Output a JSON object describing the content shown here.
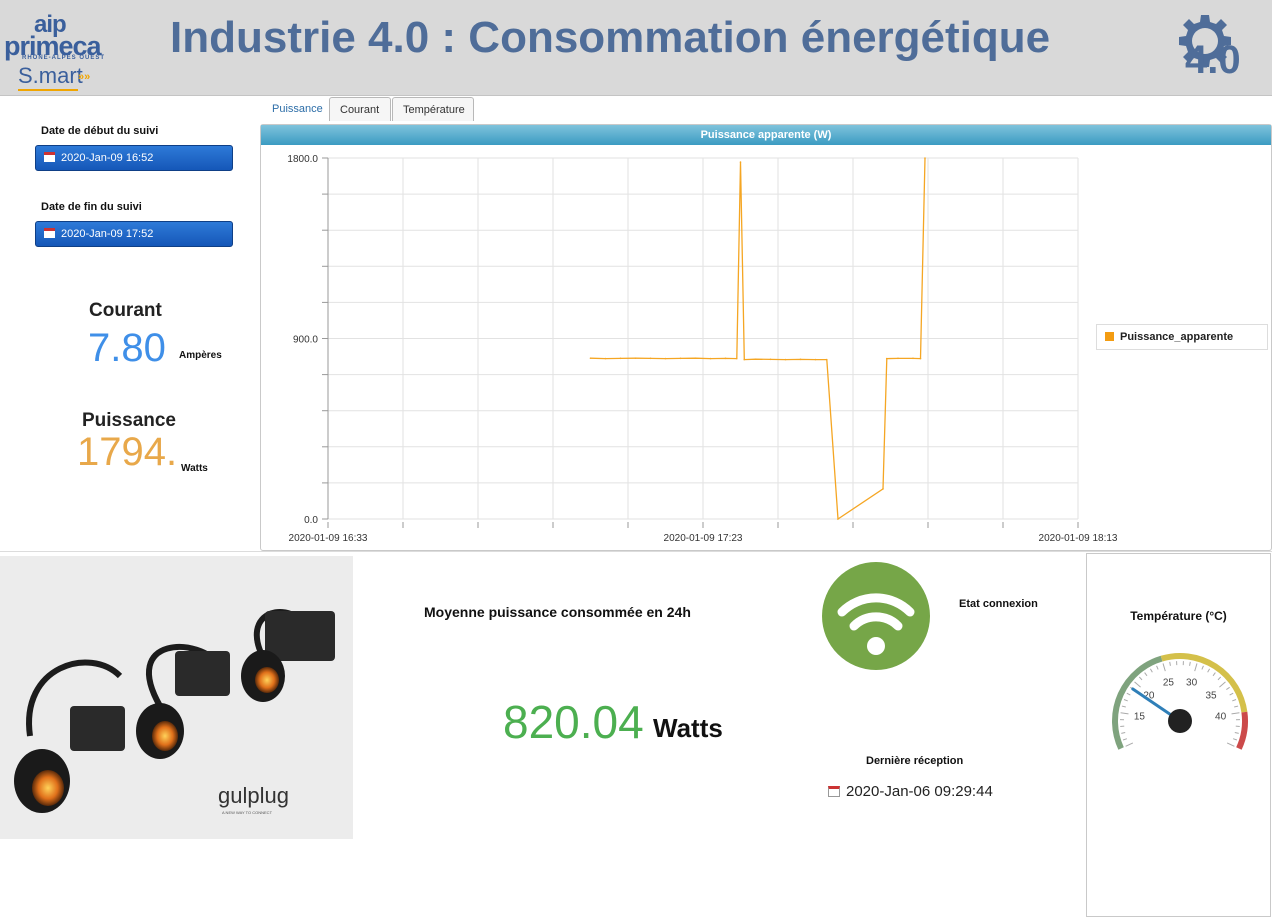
{
  "header": {
    "title": "Industrie 4.0 : Consommation énergétique",
    "logo": {
      "line1": "aip",
      "line2": "primeca",
      "line3": "RHONE-ALPES OUEST",
      "line4": "S.mart"
    },
    "badge": "4.0"
  },
  "tabs": [
    {
      "label": "Puissance",
      "active": true
    },
    {
      "label": "Courant",
      "active": false
    },
    {
      "label": "Température",
      "active": false
    }
  ],
  "tracking": {
    "start_label": "Date de début du suivi",
    "start_value": "2020-Jan-09 16:52",
    "end_label": "Date de fin du suivi",
    "end_value": "2020-Jan-09 17:52"
  },
  "current": {
    "label": "Courant",
    "value": "7.80",
    "unit": "Ampères"
  },
  "power": {
    "label": "Puissance",
    "value": "1794.",
    "unit": "Watts"
  },
  "chart_data": {
    "type": "line",
    "title": "Puissance apparente (W)",
    "xlabel": "",
    "ylabel": "",
    "ylim": [
      0,
      1800
    ],
    "y_ticks": [
      "1800.0",
      "900.0",
      "0.0"
    ],
    "x_ticks": [
      "2020-01-09 16:33",
      "2020-01-09 17:23",
      "2020-01-09 18:13"
    ],
    "x_range_minutes_from_start": [
      0,
      100
    ],
    "grid": true,
    "legend": "right",
    "series": [
      {
        "name": "Puissance_apparente",
        "color": "#f5a623",
        "x": [
          35,
          37,
          39,
          41,
          43,
          45,
          47,
          49,
          51,
          53,
          54.5,
          55.0,
          55.5,
          57,
          59,
          61,
          63,
          65,
          66.5,
          68.0,
          74.0,
          74.5,
          76,
          78,
          79.0,
          79.6
        ],
        "values": [
          802,
          800,
          801,
          802,
          801,
          800,
          801,
          802,
          800,
          801,
          800,
          1780,
          795,
          797,
          796,
          795,
          796,
          795,
          795,
          0,
          150,
          800,
          801,
          801,
          800,
          1800
        ]
      }
    ]
  },
  "average": {
    "title": "Moyenne puissance consommée en 24h",
    "value": "820.04",
    "unit": "Watts"
  },
  "connection": {
    "label": "Etat connexion",
    "color": "#76a648"
  },
  "last_reception": {
    "label": "Dernière réception",
    "value": "2020-Jan-06 09:29:44"
  },
  "temperature": {
    "title": "Température (°C)",
    "value": 19,
    "min": 10,
    "max": 45,
    "ticks": [
      "15",
      "20",
      "25",
      "30",
      "35",
      "40"
    ]
  },
  "product": {
    "brand": "gulplug",
    "tagline": "A NEW WAY TO CONNECT"
  }
}
